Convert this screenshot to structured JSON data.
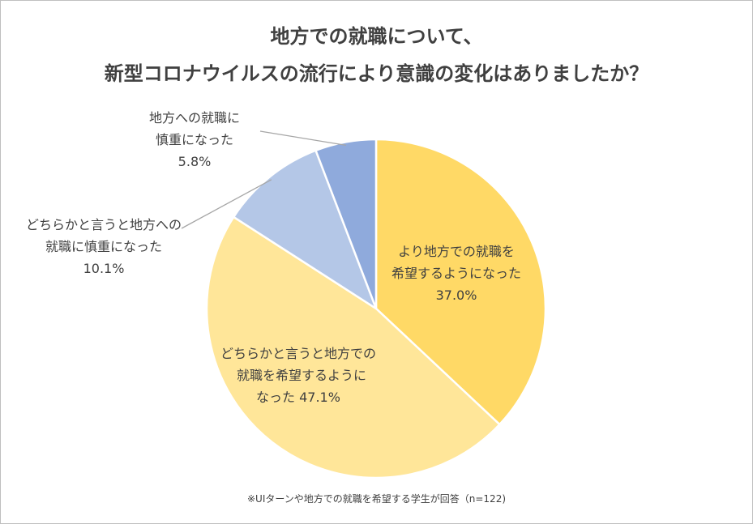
{
  "chart_data": {
    "type": "pie",
    "title_lines": [
      "地方での就職について、",
      "新型コロナウイルスの流行により意識の変化はありましたか？"
    ],
    "slices": [
      {
        "label_lines": [
          "より地方での就職を",
          "希望するようになった",
          "37.0%"
        ],
        "value": 37.0,
        "color": "#ffd966"
      },
      {
        "label_lines": [
          "どちらかと言うと地方での",
          "就職を希望するように",
          "なった 47.1%"
        ],
        "value": 47.1,
        "color": "#ffe699"
      },
      {
        "label_lines": [
          "どちらかと言うと地方への",
          "就職に慎重になった",
          "10.1%"
        ],
        "value": 10.1,
        "color": "#b4c7e7"
      },
      {
        "label_lines": [
          "地方への就職に",
          "慎重になった",
          "5.8%"
        ],
        "value": 5.8,
        "color": "#8faadc"
      }
    ],
    "start": "12 o'clock",
    "direction": "clockwise"
  },
  "footnote": "※UIターンや地方での就職を希望する学生が回答（n=122)"
}
